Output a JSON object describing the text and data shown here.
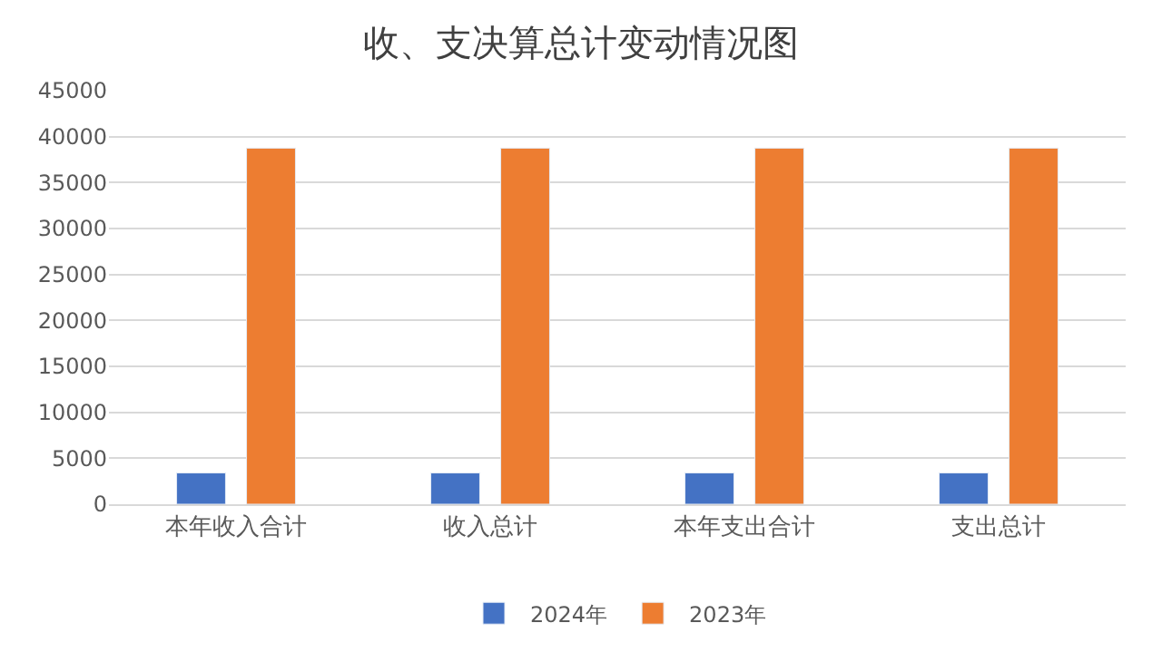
{
  "chart_data": {
    "type": "bar",
    "title": "收、支决算总计变动情况图",
    "categories": [
      "本年收入合计",
      "收入总计",
      "本年支出合计",
      "支出总计"
    ],
    "series": [
      {
        "name": "2024年",
        "color": "#4472c4",
        "values": [
          3400,
          3400,
          3400,
          3400
        ]
      },
      {
        "name": "2023年",
        "color": "#ed7d31",
        "values": [
          38750,
          38750,
          38750,
          38750
        ]
      }
    ],
    "ylim": [
      0,
      45000
    ],
    "yticks": [
      0,
      5000,
      10000,
      15000,
      20000,
      25000,
      30000,
      35000,
      40000,
      45000
    ],
    "grid": "y",
    "legend": "bottom"
  }
}
